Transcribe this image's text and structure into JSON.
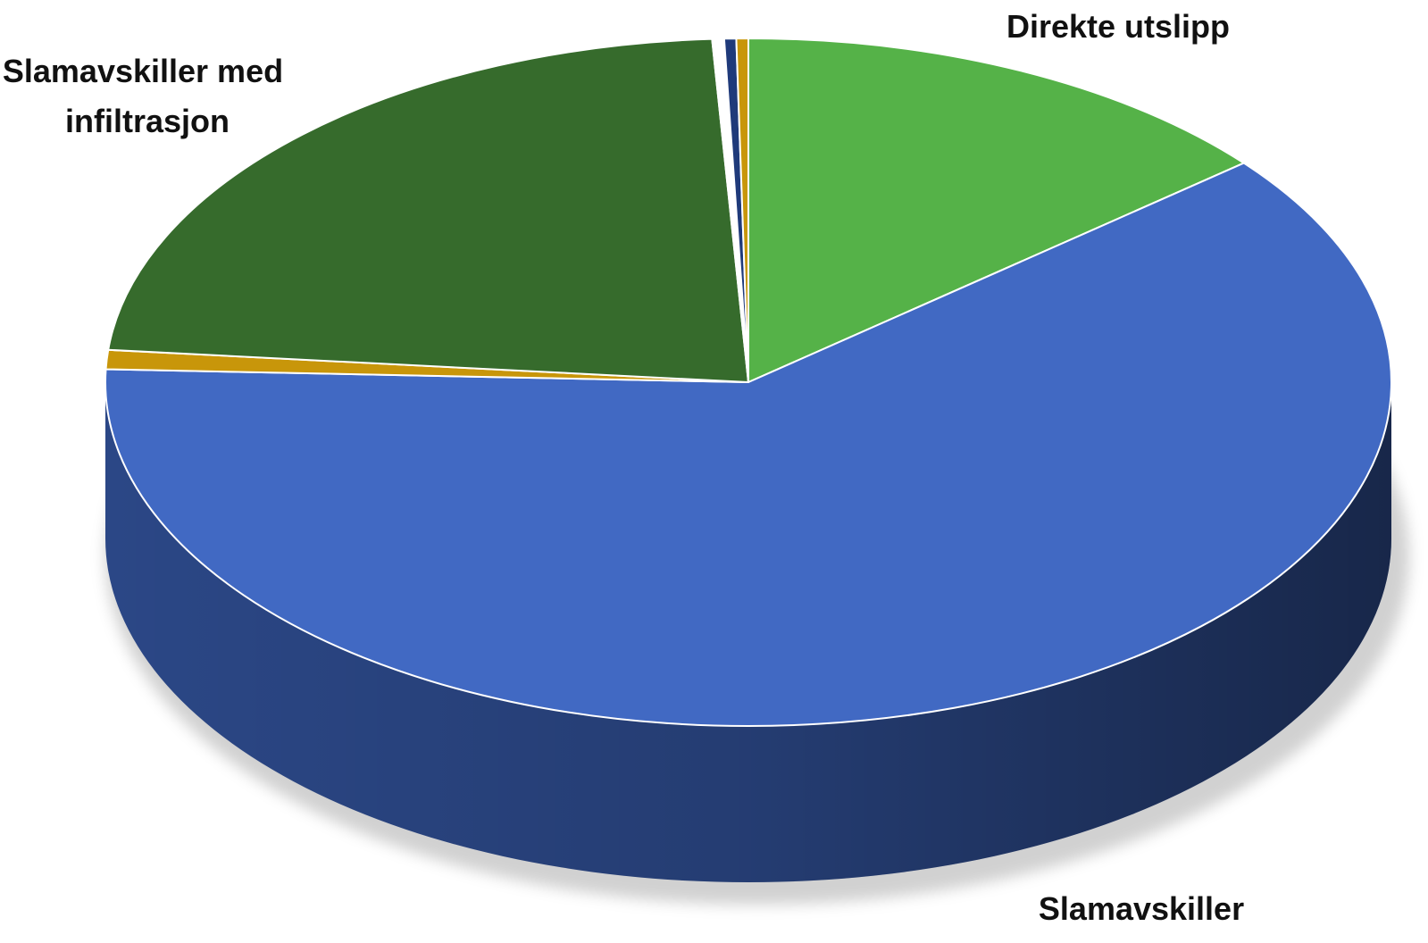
{
  "chart_data": {
    "type": "pie",
    "style": "3d",
    "start_angle_deg": 90,
    "direction": "clockwise",
    "slices": [
      {
        "label": "Direkte utslipp",
        "value": 14.0,
        "color": "#55b248",
        "depth_color": "#3a7e30"
      },
      {
        "label": "Slamavskiller",
        "value": 61.6,
        "color": "#4169c3",
        "depth_color": "#2b4786"
      },
      {
        "label": "",
        "value": 0.9,
        "color": "#c8960a",
        "depth_color": "#8a6400"
      },
      {
        "label": "Slamavskiller med infiltrasjon",
        "value": 22.6,
        "color": "#366b2c",
        "depth_color": "#234a1c"
      },
      {
        "label": "",
        "value": 0.3,
        "color": "#ffffff",
        "depth_color": "#dddddd"
      },
      {
        "label": "",
        "value": 0.3,
        "color": "#1f3a7a",
        "depth_color": "#14274f"
      },
      {
        "label": "",
        "value": 0.3,
        "color": "#c8960a",
        "depth_color": "#8a6400"
      }
    ],
    "labels": [
      {
        "slice_index": 0,
        "lines": [
          "Direkte utslipp"
        ]
      },
      {
        "slice_index": 1,
        "lines": [
          "Slamavskiller"
        ]
      },
      {
        "slice_index": 3,
        "lines": [
          "Slamavskiller med",
          "infiltrasjon"
        ]
      }
    ],
    "legend": "none",
    "title": ""
  }
}
